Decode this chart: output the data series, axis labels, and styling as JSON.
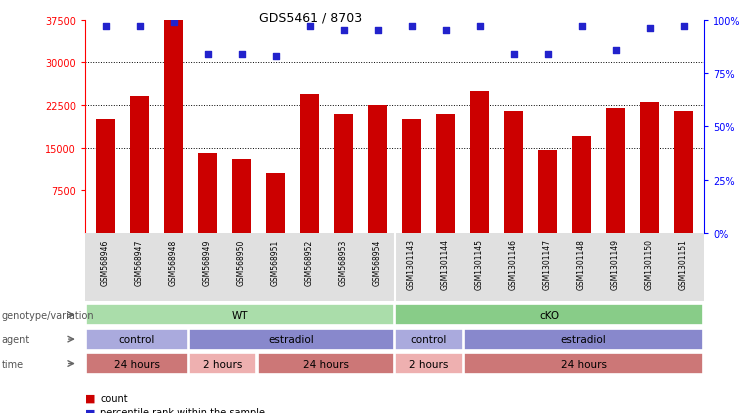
{
  "title": "GDS5461 / 8703",
  "samples": [
    "GSM568946",
    "GSM568947",
    "GSM568948",
    "GSM568949",
    "GSM568950",
    "GSM568951",
    "GSM568952",
    "GSM568953",
    "GSM568954",
    "GSM1301143",
    "GSM1301144",
    "GSM1301145",
    "GSM1301146",
    "GSM1301147",
    "GSM1301148",
    "GSM1301149",
    "GSM1301150",
    "GSM1301151"
  ],
  "counts": [
    20000,
    24000,
    37500,
    14000,
    13000,
    10500,
    24500,
    21000,
    22500,
    20000,
    21000,
    25000,
    21500,
    14500,
    17000,
    22000,
    23000,
    21500
  ],
  "percentile_ranks": [
    97,
    97,
    99,
    84,
    84,
    83,
    97,
    95,
    95,
    97,
    95,
    97,
    84,
    84,
    97,
    86,
    96,
    97
  ],
  "bar_color": "#cc0000",
  "dot_color": "#2222cc",
  "ylim_left": [
    0,
    37500
  ],
  "ylim_right": [
    0,
    100
  ],
  "yticks_left": [
    7500,
    15000,
    22500,
    30000,
    37500
  ],
  "yticks_right": [
    0,
    25,
    50,
    75,
    100
  ],
  "grid_values": [
    15000,
    22500,
    30000
  ],
  "genotype_row": {
    "label": "genotype/variation",
    "segments": [
      {
        "text": "WT",
        "start": 0,
        "end": 9,
        "color": "#aaddaa"
      },
      {
        "text": "cKO",
        "start": 9,
        "end": 18,
        "color": "#88cc88"
      }
    ]
  },
  "agent_row": {
    "label": "agent",
    "segments": [
      {
        "text": "control",
        "start": 0,
        "end": 3,
        "color": "#aaaadd"
      },
      {
        "text": "estradiol",
        "start": 3,
        "end": 9,
        "color": "#8888cc"
      },
      {
        "text": "control",
        "start": 9,
        "end": 11,
        "color": "#aaaadd"
      },
      {
        "text": "estradiol",
        "start": 11,
        "end": 18,
        "color": "#8888cc"
      }
    ]
  },
  "time_row": {
    "label": "time",
    "segments": [
      {
        "text": "24 hours",
        "start": 0,
        "end": 3,
        "color": "#cc7777"
      },
      {
        "text": "2 hours",
        "start": 3,
        "end": 5,
        "color": "#eeb0b0"
      },
      {
        "text": "24 hours",
        "start": 5,
        "end": 9,
        "color": "#cc7777"
      },
      {
        "text": "2 hours",
        "start": 9,
        "end": 11,
        "color": "#eeb0b0"
      },
      {
        "text": "24 hours",
        "start": 11,
        "end": 18,
        "color": "#cc7777"
      }
    ]
  },
  "legend_count_color": "#cc0000",
  "legend_dot_color": "#2222cc",
  "background_color": "#ffffff"
}
